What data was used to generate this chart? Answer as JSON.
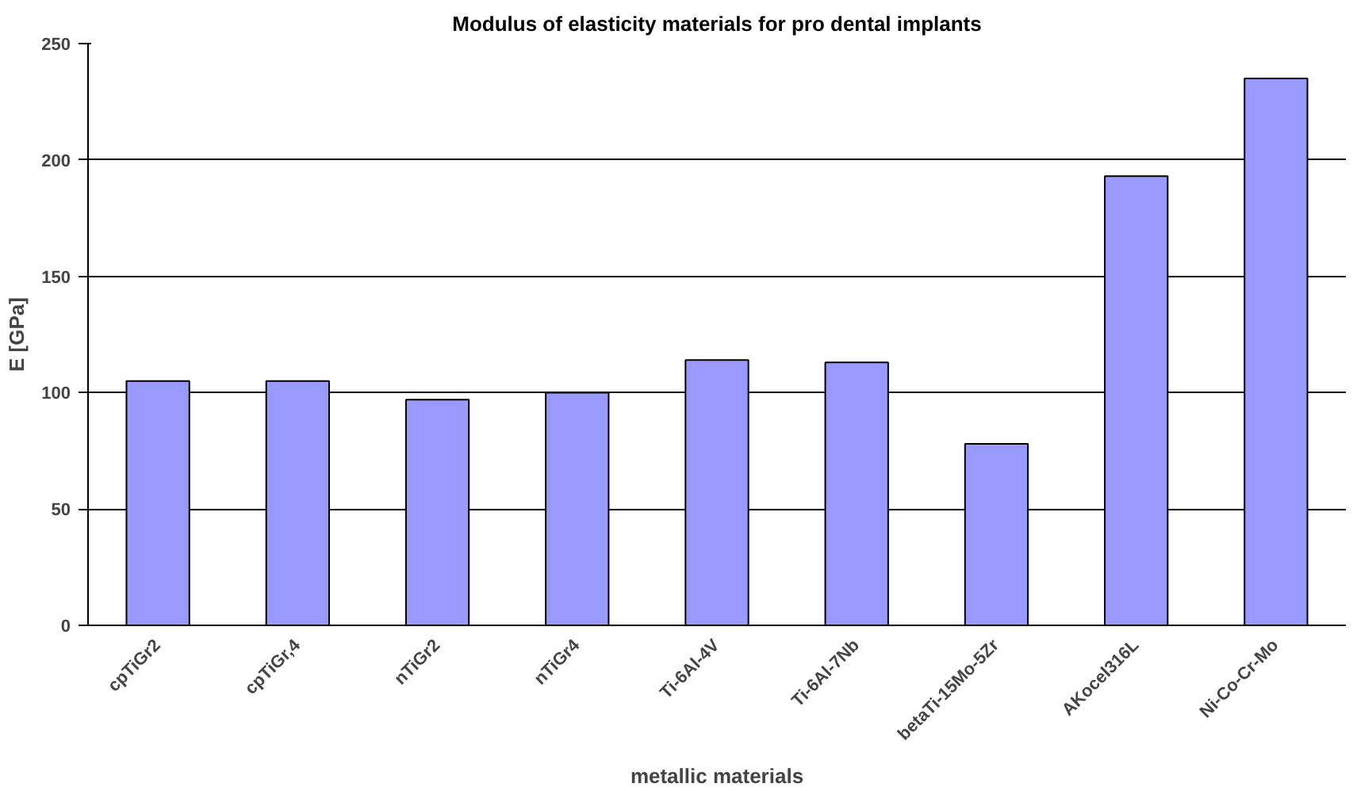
{
  "chart_data": {
    "type": "bar",
    "title": "Modulus of elasticity materials for pro dental implants",
    "xlabel": "metallic materials",
    "ylabel": "E [GPa]",
    "categories": [
      "cpTiGr2",
      "cpTiGr,4",
      "nTiGr2",
      "nTiGr4",
      "Ti-6Al-4V",
      "Ti-6Al-7Nb",
      "betaTi-15Mo-5Zr",
      "AKocel316L",
      "Ni-Co-Cr-Mo"
    ],
    "values": [
      105,
      105,
      97,
      100,
      114,
      113,
      78,
      193,
      235
    ],
    "color": "#9999ff",
    "ylim": [
      0,
      250
    ],
    "yticks": [
      0,
      50,
      100,
      150,
      200,
      250
    ],
    "grid": "y"
  }
}
